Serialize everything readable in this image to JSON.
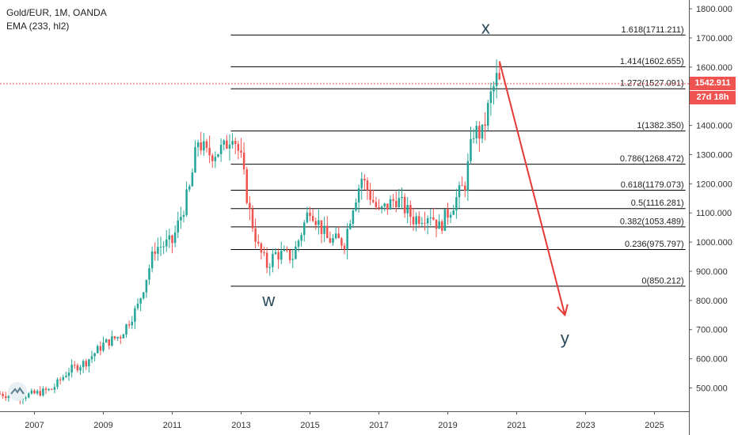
{
  "legend": {
    "symbol": "Gold/EUR, 1M, OANDA",
    "indicator": "EMA (233, hl2)"
  },
  "price_badge": {
    "price": "1542.911",
    "countdown": "27d 18h"
  },
  "colors": {
    "up": "#26a69a",
    "down": "#ef5350",
    "projection": "#e53935",
    "fib": "#000000",
    "price_line": "#ef5350"
  },
  "chart_data": {
    "type": "candlestick",
    "instrument": "Gold/EUR",
    "interval": "1M",
    "source": "OANDA",
    "current_price": 1542.911,
    "xlim": [
      2006.0,
      2026.0
    ],
    "ylim": [
      420,
      1830
    ],
    "x_ticks": [
      "2007",
      "2009",
      "2011",
      "2013",
      "2015",
      "2017",
      "2019",
      "2021",
      "2023",
      "2025"
    ],
    "y_ticks": [
      "1800.000",
      "1700.000",
      "1600.000",
      "1500.000",
      "1400.000",
      "1300.000",
      "1200.000",
      "1100.000",
      "1000.000",
      "900.000",
      "800.000",
      "700.000",
      "600.000",
      "500.000"
    ],
    "close_path": [
      [
        2006.0,
        480
      ],
      [
        2006.5,
        470
      ],
      [
        2007.0,
        480
      ],
      [
        2007.5,
        495
      ],
      [
        2008.0,
        560
      ],
      [
        2008.5,
        590
      ],
      [
        2009.0,
        650
      ],
      [
        2009.5,
        680
      ],
      [
        2010.0,
        780
      ],
      [
        2010.5,
        980
      ],
      [
        2011.0,
        1000
      ],
      [
        2011.5,
        1180
      ],
      [
        2011.75,
        1350
      ],
      [
        2012.0,
        1300
      ],
      [
        2012.5,
        1320
      ],
      [
        2012.75,
        1382
      ],
      [
        2013.0,
        1280
      ],
      [
        2013.25,
        1100
      ],
      [
        2013.5,
        980
      ],
      [
        2013.75,
        920
      ],
      [
        2014.0,
        960
      ],
      [
        2014.5,
        950
      ],
      [
        2015.0,
        1120
      ],
      [
        2015.5,
        1010
      ],
      [
        2016.0,
        1000
      ],
      [
        2016.25,
        1130
      ],
      [
        2016.5,
        1220
      ],
      [
        2017.0,
        1100
      ],
      [
        2017.5,
        1150
      ],
      [
        2018.0,
        1080
      ],
      [
        2018.5,
        1100
      ],
      [
        2018.75,
        1050
      ],
      [
        2019.0,
        1100
      ],
      [
        2019.5,
        1200
      ],
      [
        2019.75,
        1380
      ],
      [
        2020.0,
        1370
      ],
      [
        2020.25,
        1500
      ],
      [
        2020.42,
        1560
      ],
      [
        2020.5,
        1542
      ]
    ],
    "fib_levels": [
      {
        "ratio": "1.618",
        "value": 1711.211,
        "label": "1.618(1711.211)"
      },
      {
        "ratio": "1.414",
        "value": 1602.655,
        "label": "1.414(1602.655)"
      },
      {
        "ratio": "1.272",
        "value": 1527.091,
        "label": "1.272(1527.091)"
      },
      {
        "ratio": "1",
        "value": 1382.35,
        "label": "1(1382.350)"
      },
      {
        "ratio": "0.786",
        "value": 1268.472,
        "label": "0.786(1268.472)"
      },
      {
        "ratio": "0.618",
        "value": 1179.073,
        "label": "0.618(1179.073)"
      },
      {
        "ratio": "0.5",
        "value": 1116.281,
        "label": "0.5(1116.281)"
      },
      {
        "ratio": "0.382",
        "value": 1053.489,
        "label": "0.382(1053.489)"
      },
      {
        "ratio": "0.236",
        "value": 975.797,
        "label": "0.236(975.797)"
      },
      {
        "ratio": "0",
        "value": 850.212,
        "label": "0(850.212)"
      }
    ],
    "fib_x_range": [
      2012.7,
      2025.9
    ],
    "wave_labels": [
      {
        "text": "x",
        "x": 2020.1,
        "y": 1715
      },
      {
        "text": "w",
        "x": 2013.8,
        "y": 780
      },
      {
        "text": "y",
        "x": 2022.4,
        "y": 650
      }
    ],
    "projection": {
      "from": [
        2020.5,
        1620
      ],
      "to": [
        2022.4,
        750
      ]
    }
  }
}
